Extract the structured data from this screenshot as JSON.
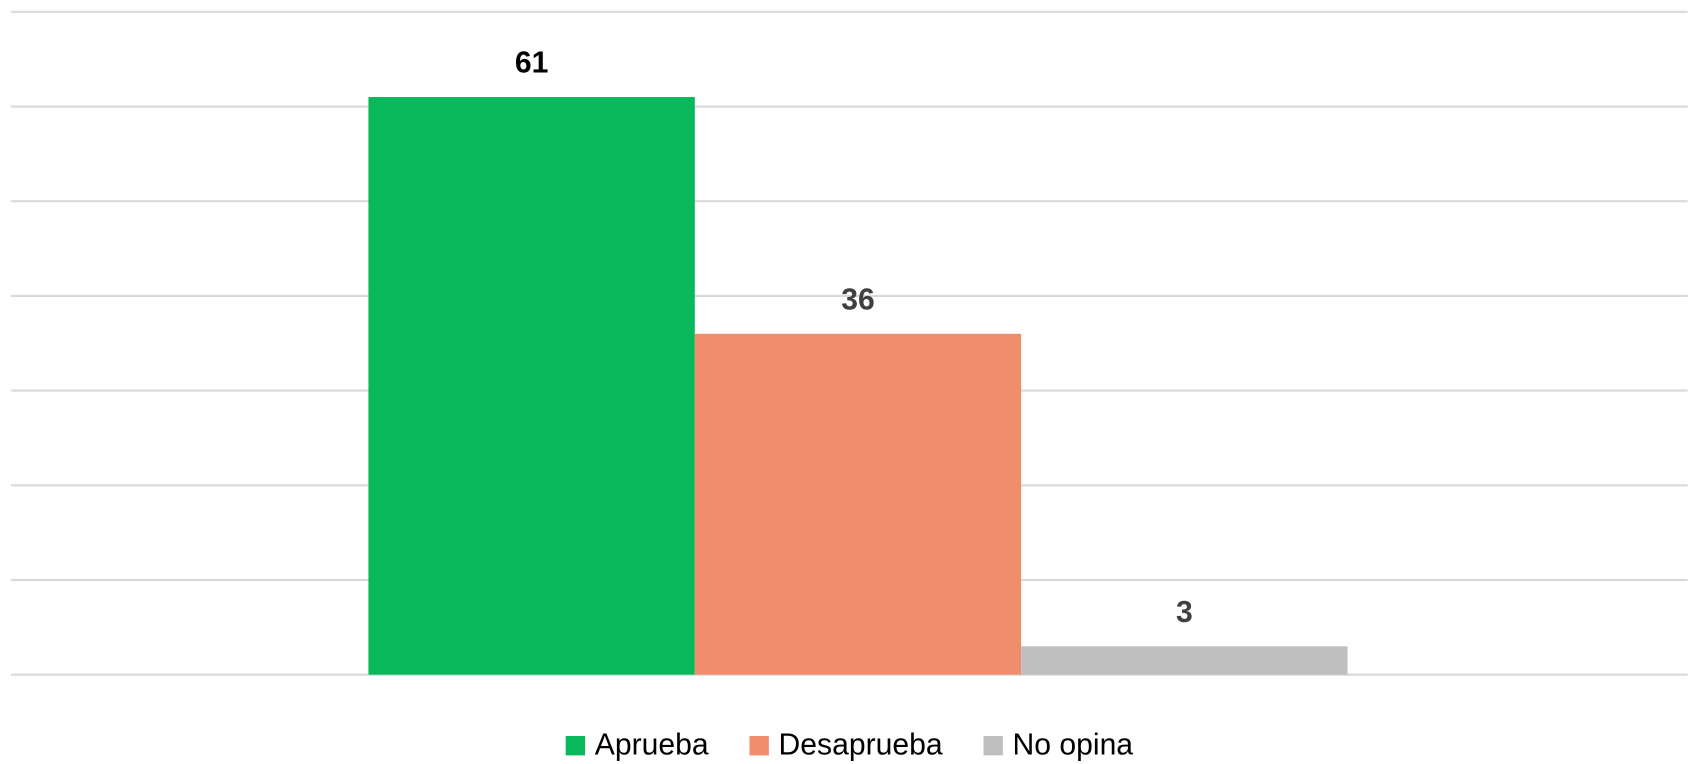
{
  "chart_data": {
    "type": "bar",
    "categories": [
      null
    ],
    "series": [
      {
        "name": "Aprueba",
        "color": "#08b85a",
        "values": [
          61
        ]
      },
      {
        "name": "Desaprueba",
        "color": "#f08d6c",
        "values": [
          36
        ]
      },
      {
        "name": "No opina",
        "color": "#bfbfbf",
        "values": [
          3
        ]
      }
    ],
    "ylim": [
      0,
      70
    ],
    "yticks": [
      0,
      10,
      20,
      30,
      40,
      50,
      60,
      70
    ],
    "grid": true,
    "legend": "bottom"
  }
}
